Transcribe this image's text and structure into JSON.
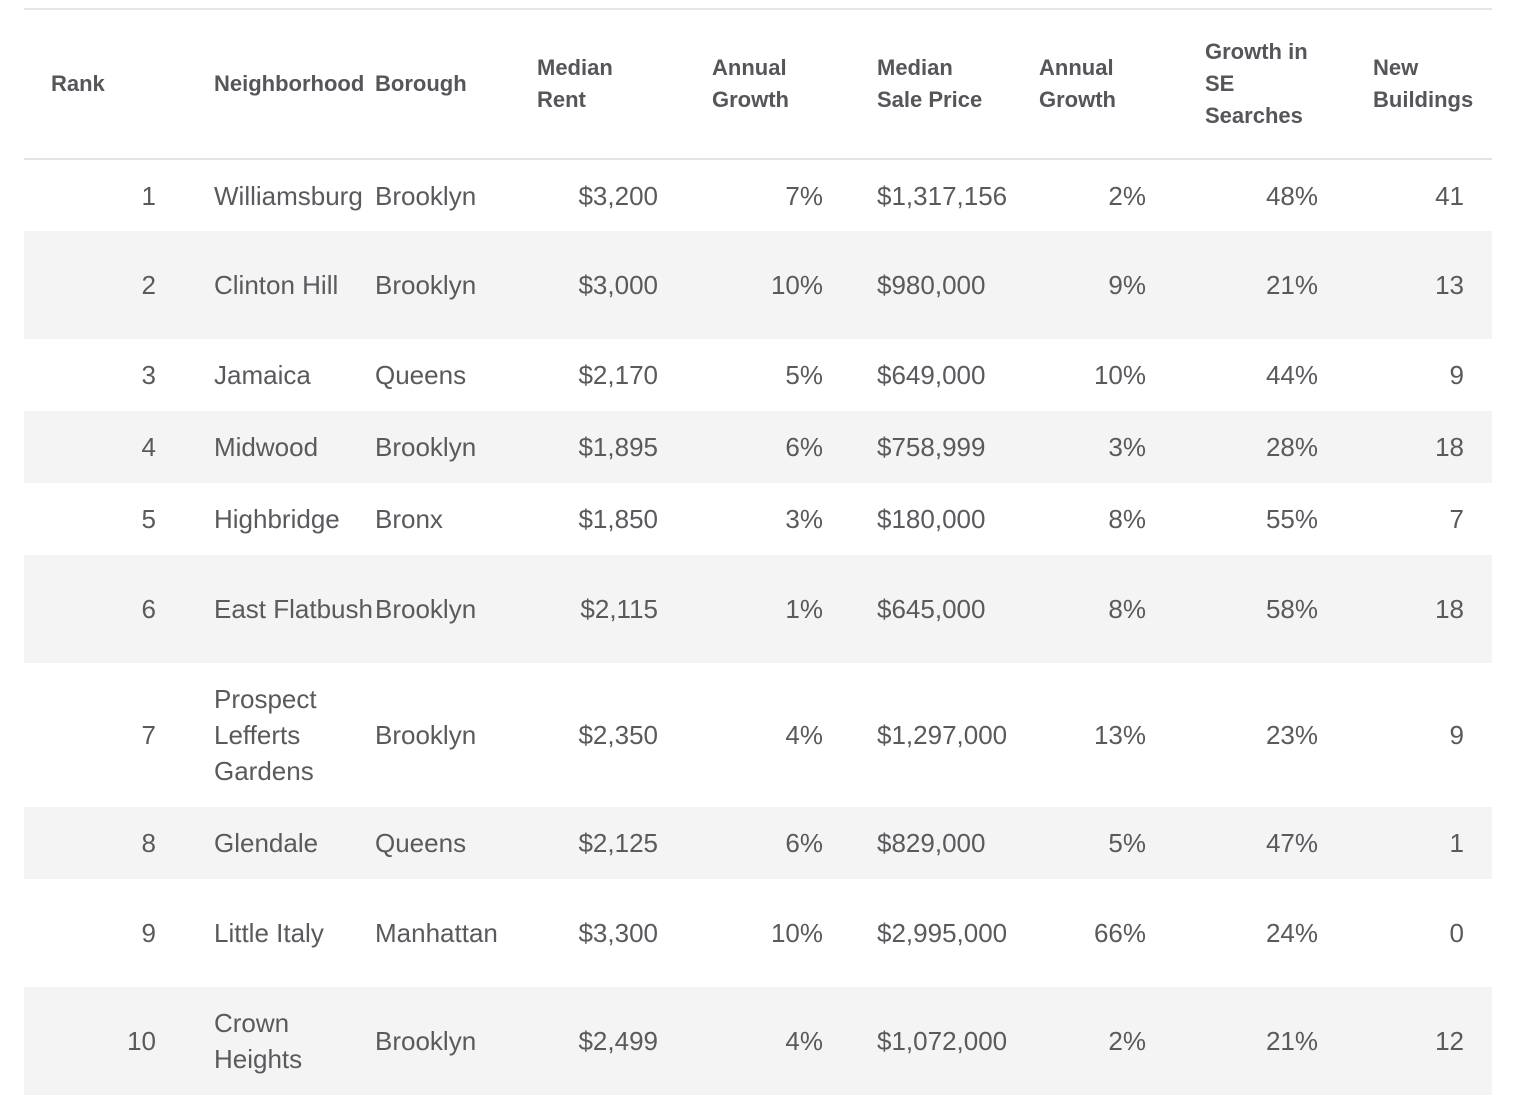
{
  "table": {
    "headers": {
      "rank": "Rank",
      "neighborhood": "Neighborhood",
      "borough": "Borough",
      "median_rent_1": "Median",
      "median_rent_2": "Rent",
      "rent_growth_1": "Annual",
      "rent_growth_2": "Growth",
      "sale_price_1": "Median",
      "sale_price_2": "Sale Price",
      "sale_growth_1": "Annual",
      "sale_growth_2": "Growth",
      "se_growth_1": "Growth in",
      "se_growth_2": "SE",
      "se_growth_3": "Searches",
      "new_buildings_1": "New",
      "new_buildings_2": "Buildings"
    },
    "rows": [
      {
        "rank": "1",
        "neighborhood": "Williamsburg",
        "borough": "Brooklyn",
        "median_rent": "$3,200",
        "rent_growth": "7%",
        "median_sale_price": "$1,317,156",
        "sale_growth": "2%",
        "se_search_growth": "48%",
        "new_buildings": "41"
      },
      {
        "rank": "2",
        "neighborhood": "Clinton Hill",
        "borough": "Brooklyn",
        "median_rent": "$3,000",
        "rent_growth": "10%",
        "median_sale_price": "$980,000",
        "sale_growth": "9%",
        "se_search_growth": "21%",
        "new_buildings": "13"
      },
      {
        "rank": "3",
        "neighborhood": "Jamaica",
        "borough": "Queens",
        "median_rent": "$2,170",
        "rent_growth": "5%",
        "median_sale_price": "$649,000",
        "sale_growth": "10%",
        "se_search_growth": "44%",
        "new_buildings": "9"
      },
      {
        "rank": "4",
        "neighborhood": "Midwood",
        "borough": "Brooklyn",
        "median_rent": "$1,895",
        "rent_growth": "6%",
        "median_sale_price": "$758,999",
        "sale_growth": "3%",
        "se_search_growth": "28%",
        "new_buildings": "18"
      },
      {
        "rank": "5",
        "neighborhood": "Highbridge",
        "borough": "Bronx",
        "median_rent": "$1,850",
        "rent_growth": "3%",
        "median_sale_price": "$180,000",
        "sale_growth": "8%",
        "se_search_growth": "55%",
        "new_buildings": "7"
      },
      {
        "rank": "6",
        "neighborhood": "East Flatbush",
        "borough": "Brooklyn",
        "median_rent": "$2,115",
        "rent_growth": "1%",
        "median_sale_price": "$645,000",
        "sale_growth": "8%",
        "se_search_growth": "58%",
        "new_buildings": "18"
      },
      {
        "rank": "7",
        "neighborhood": "Prospect Lefferts Gardens",
        "borough": "Brooklyn",
        "median_rent": "$2,350",
        "rent_growth": "4%",
        "median_sale_price": "$1,297,000",
        "sale_growth": "13%",
        "se_search_growth": "23%",
        "new_buildings": "9"
      },
      {
        "rank": "8",
        "neighborhood": "Glendale",
        "borough": "Queens",
        "median_rent": "$2,125",
        "rent_growth": "6%",
        "median_sale_price": "$829,000",
        "sale_growth": "5%",
        "se_search_growth": "47%",
        "new_buildings": "1"
      },
      {
        "rank": "9",
        "neighborhood": "Little Italy",
        "borough": "Manhattan",
        "median_rent": "$3,300",
        "rent_growth": "10%",
        "median_sale_price": "$2,995,000",
        "sale_growth": "66%",
        "se_search_growth": "24%",
        "new_buildings": "0"
      },
      {
        "rank": "10",
        "neighborhood": "Crown Heights",
        "borough": "Brooklyn",
        "median_rent": "$2,499",
        "rent_growth": "4%",
        "median_sale_price": "$1,072,000",
        "sale_growth": "2%",
        "se_search_growth": "21%",
        "new_buildings": "12"
      }
    ]
  }
}
